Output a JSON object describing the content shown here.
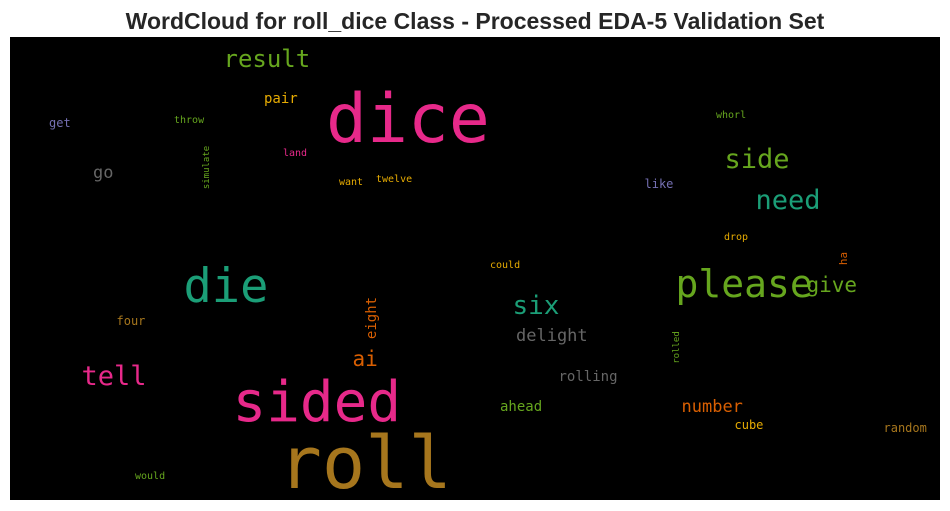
{
  "chart_data": {
    "type": "wordcloud",
    "title": "WordCloud for roll_dice Class - Processed EDA-5 Validation Set",
    "background": "#000000",
    "words": [
      {
        "text": "roll",
        "rank": 1,
        "color": "#a6761d",
        "orientation": "horizontal"
      },
      {
        "text": "dice",
        "rank": 2,
        "color": "#e7298a",
        "orientation": "horizontal"
      },
      {
        "text": "sided",
        "rank": 3,
        "color": "#e7298a",
        "orientation": "horizontal"
      },
      {
        "text": "die",
        "rank": 4,
        "color": "#1b9e77",
        "orientation": "horizontal"
      },
      {
        "text": "please",
        "rank": 5,
        "color": "#66a61e",
        "orientation": "horizontal"
      },
      {
        "text": "side",
        "rank": 6,
        "color": "#66a61e",
        "orientation": "horizontal"
      },
      {
        "text": "tell",
        "rank": 7,
        "color": "#e7298a",
        "orientation": "horizontal"
      },
      {
        "text": "need",
        "rank": 8,
        "color": "#1b9e77",
        "orientation": "horizontal"
      },
      {
        "text": "six",
        "rank": 9,
        "color": "#1b9e77",
        "orientation": "horizontal"
      },
      {
        "text": "result",
        "rank": 10,
        "color": "#66a61e",
        "orientation": "horizontal"
      },
      {
        "text": "give",
        "rank": 11,
        "color": "#66a61e",
        "orientation": "horizontal"
      },
      {
        "text": "ai",
        "rank": 12,
        "color": "#d95f02",
        "orientation": "horizontal"
      },
      {
        "text": "number",
        "rank": 13,
        "color": "#d95f02",
        "orientation": "horizontal"
      },
      {
        "text": "delight",
        "rank": 14,
        "color": "#666666",
        "orientation": "horizontal"
      },
      {
        "text": "go",
        "rank": 15,
        "color": "#666666",
        "orientation": "horizontal"
      },
      {
        "text": "rolling",
        "rank": 16,
        "color": "#666666",
        "orientation": "horizontal"
      },
      {
        "text": "pair",
        "rank": 17,
        "color": "#e6ab02",
        "orientation": "horizontal"
      },
      {
        "text": "ahead",
        "rank": 18,
        "color": "#66a61e",
        "orientation": "horizontal"
      },
      {
        "text": "eight",
        "rank": 19,
        "color": "#d95f02",
        "orientation": "vertical"
      },
      {
        "text": "random",
        "rank": 20,
        "color": "#a6761d",
        "orientation": "horizontal"
      },
      {
        "text": "cube",
        "rank": 21,
        "color": "#e6ab02",
        "orientation": "horizontal"
      },
      {
        "text": "four",
        "rank": 22,
        "color": "#a6761d",
        "orientation": "horizontal"
      },
      {
        "text": "like",
        "rank": 23,
        "color": "#7570b3",
        "orientation": "horizontal"
      },
      {
        "text": "get",
        "rank": 24,
        "color": "#7570b3",
        "orientation": "horizontal"
      },
      {
        "text": "ha",
        "rank": 25,
        "color": "#d95f02",
        "orientation": "vertical"
      },
      {
        "text": "could",
        "rank": 26,
        "color": "#e6ab02",
        "orientation": "horizontal"
      },
      {
        "text": "want",
        "rank": 27,
        "color": "#e6ab02",
        "orientation": "horizontal"
      },
      {
        "text": "twelve",
        "rank": 28,
        "color": "#e6ab02",
        "orientation": "horizontal"
      },
      {
        "text": "land",
        "rank": 29,
        "color": "#e7298a",
        "orientation": "horizontal"
      },
      {
        "text": "drop",
        "rank": 30,
        "color": "#e6ab02",
        "orientation": "horizontal"
      },
      {
        "text": "throw",
        "rank": 31,
        "color": "#66a61e",
        "orientation": "horizontal"
      },
      {
        "text": "whorl",
        "rank": 32,
        "color": "#66a61e",
        "orientation": "horizontal"
      },
      {
        "text": "simulate",
        "rank": 33,
        "color": "#66a61e",
        "orientation": "vertical"
      },
      {
        "text": "rolled",
        "rank": 34,
        "color": "#66a61e",
        "orientation": "vertical"
      },
      {
        "text": "would",
        "rank": 35,
        "color": "#66a61e",
        "orientation": "horizontal"
      }
    ]
  }
}
